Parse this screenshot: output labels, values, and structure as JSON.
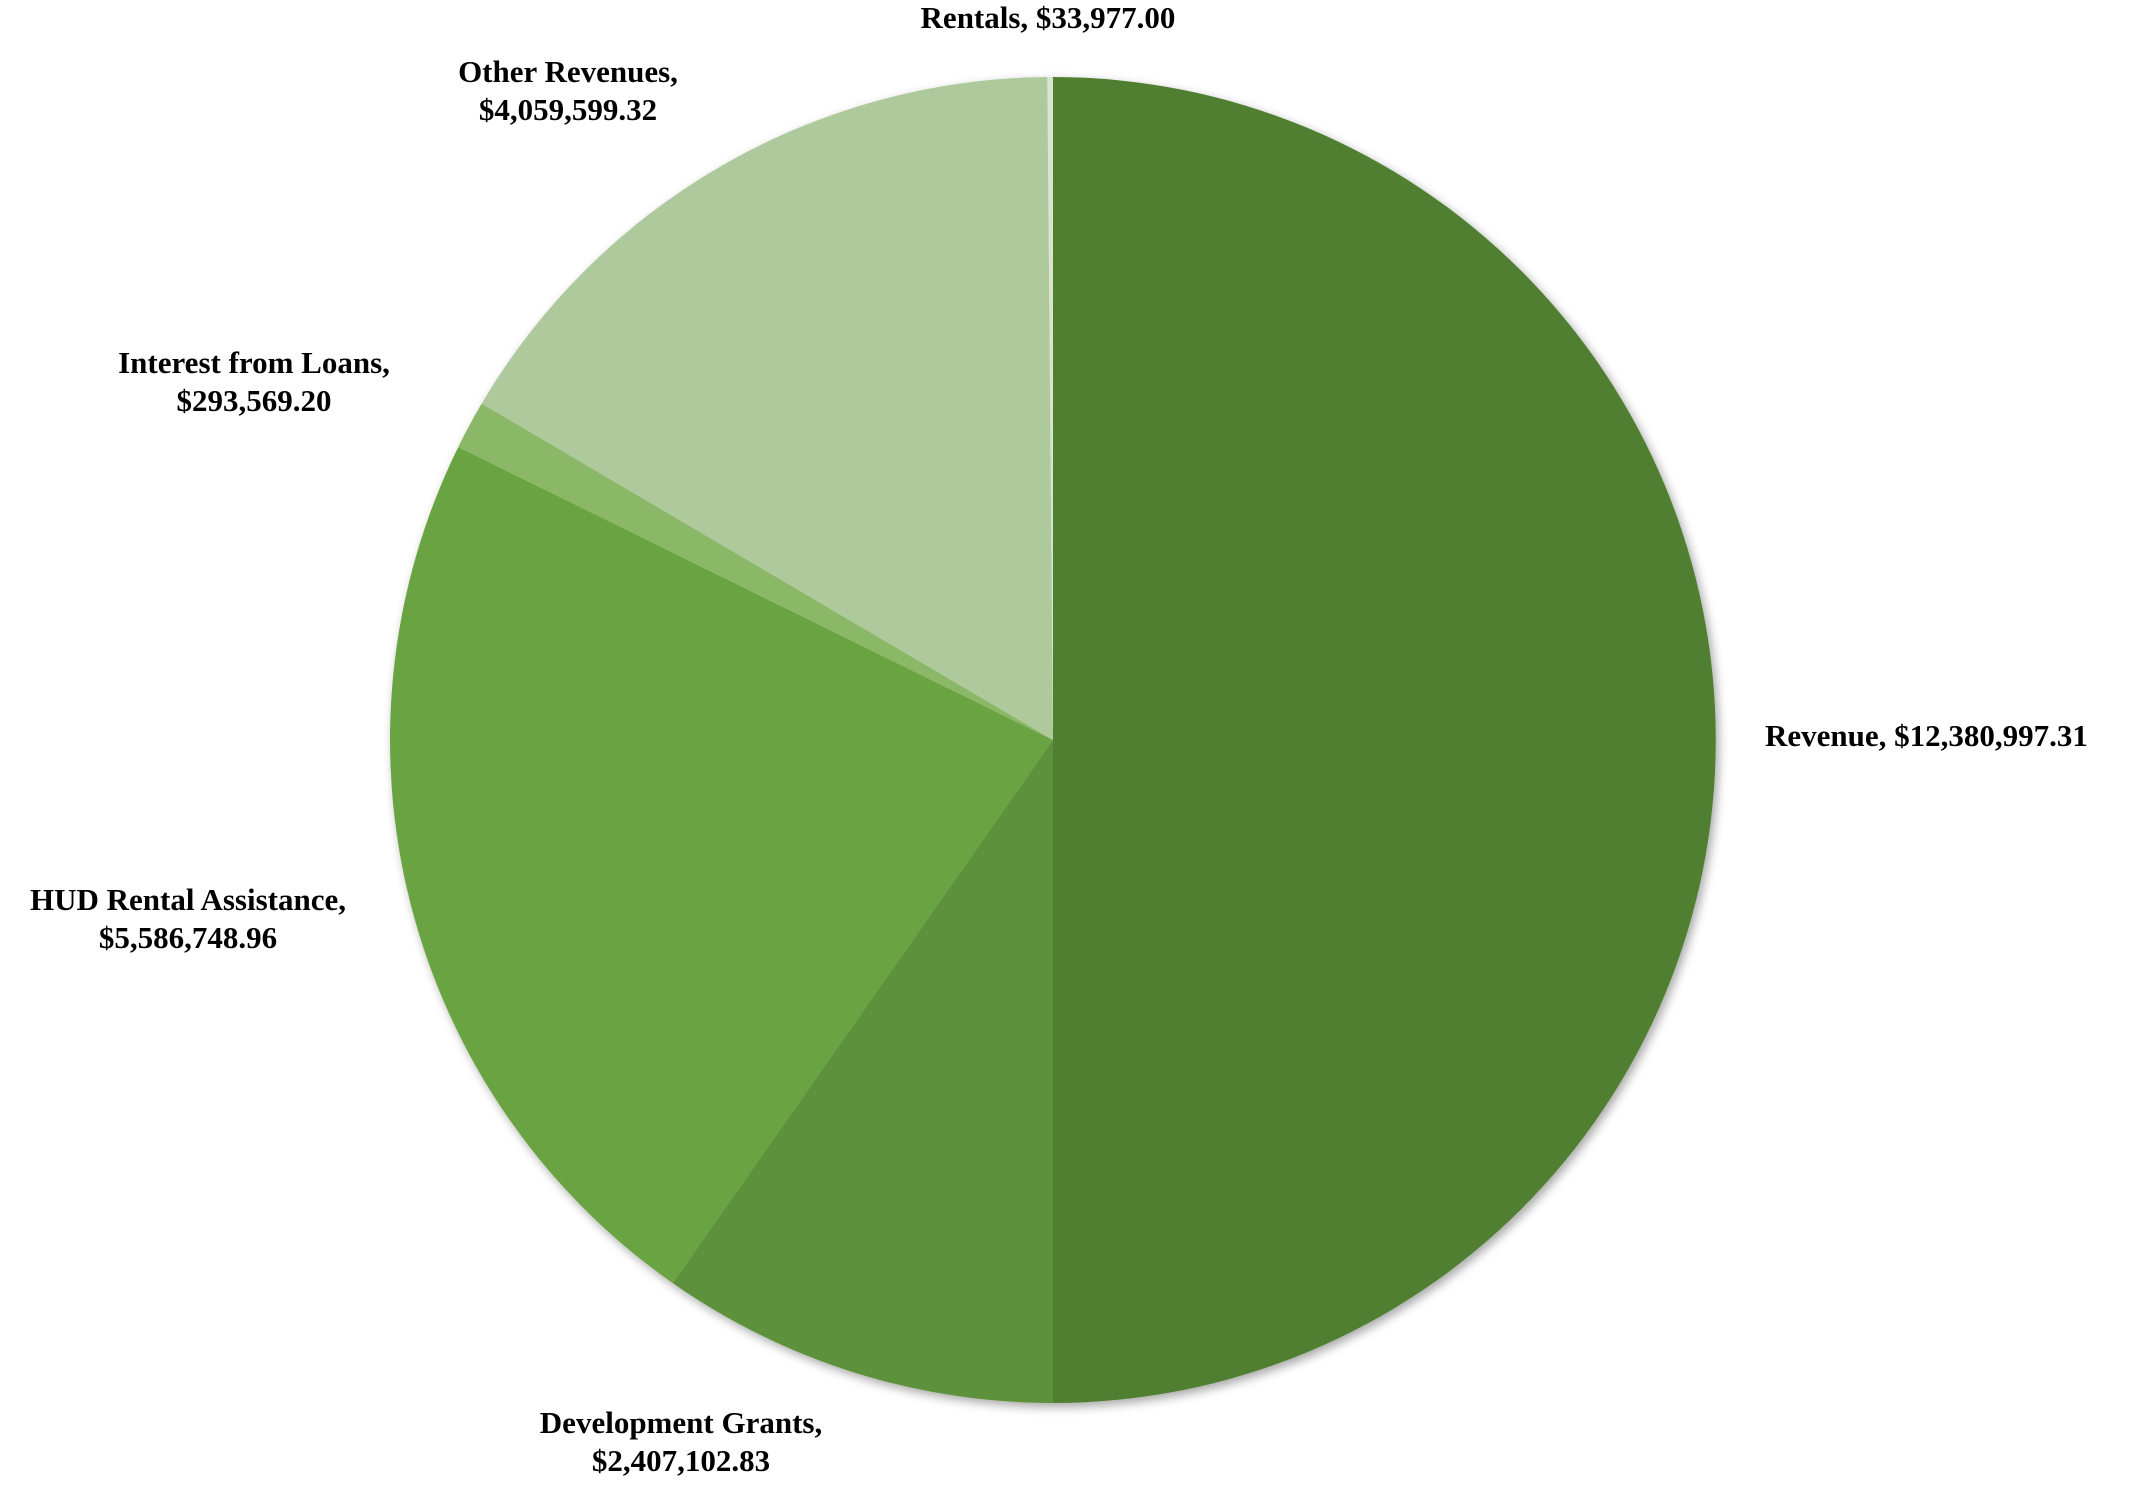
{
  "chart_data": {
    "type": "pie",
    "title": "",
    "start_angle_deg": 0,
    "direction": "clockwise",
    "slices": [
      {
        "name": "Revenue",
        "value": 12380997.31,
        "value_label": "$12,380,997.31",
        "color": "#517F33"
      },
      {
        "name": "Development Grants",
        "value": 2407102.83,
        "value_label": "$2,407,102.83",
        "color": "#5D913A"
      },
      {
        "name": "HUD Rental Assistance",
        "value": 5586748.96,
        "value_label": "$5,586,748.96",
        "color": "#6BA443"
      },
      {
        "name": "Interest from Loans",
        "value": 293569.2,
        "value_label": "$293,569.20",
        "color": "#8AB866"
      },
      {
        "name": "Other Revenues",
        "value": 4059599.32,
        "value_label": "$4,059,599.32",
        "color": "#AECA9C"
      },
      {
        "name": "Rentals",
        "value": 33977.0,
        "value_label": "$33,977.00",
        "color": "#D7E5CF"
      }
    ]
  }
}
